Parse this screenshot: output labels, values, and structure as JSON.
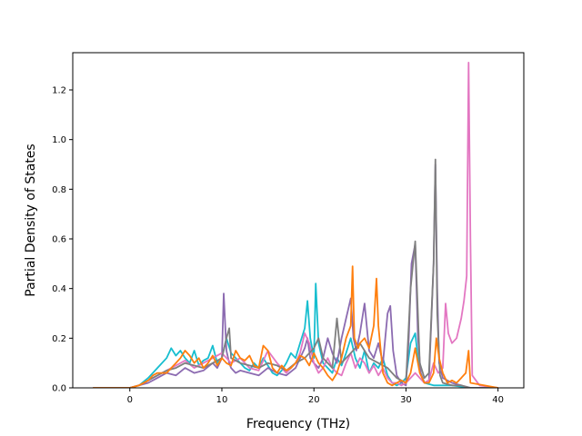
{
  "chart_data": {
    "type": "line",
    "title": "",
    "xlabel": "Frequency (THz)",
    "ylabel": "Partial Density of States",
    "xlim": [
      -6.2,
      42.8
    ],
    "ylim": [
      0,
      1.35
    ],
    "xticks": [
      0,
      10,
      20,
      30,
      40
    ],
    "yticks": [
      0.0,
      0.2,
      0.4,
      0.6,
      0.8,
      1.0,
      1.2
    ],
    "xtick_labels": [
      "0",
      "10",
      "20",
      "30",
      "40"
    ],
    "ytick_labels": [
      "0.0",
      "0.2",
      "0.4",
      "0.6",
      "0.8",
      "1.0",
      "1.2"
    ],
    "grid": false,
    "legend": "none",
    "series": [
      {
        "color": "#17becf",
        "x": [
          -4,
          0,
          1,
          2,
          3,
          4,
          4.5,
          5,
          5.5,
          6,
          6.5,
          7,
          7.5,
          8,
          8.5,
          9,
          9.5,
          10,
          10.5,
          11,
          11.5,
          12,
          12.5,
          13,
          13.5,
          14,
          14.5,
          15,
          15.5,
          16,
          16.5,
          17,
          17.5,
          18,
          18.5,
          19,
          19.3,
          19.6,
          20,
          20.2,
          20.5,
          21,
          21.5,
          22,
          22.5,
          23,
          23.5,
          24,
          24.5,
          25,
          25.5,
          26,
          26.5,
          27,
          27.5,
          28,
          28.5,
          29,
          29.5,
          30,
          30.5,
          31,
          31.3,
          31.6,
          32,
          33,
          34,
          35,
          36,
          37,
          40
        ],
        "y": [
          0,
          0,
          0.01,
          0.04,
          0.08,
          0.12,
          0.16,
          0.13,
          0.15,
          0.12,
          0.1,
          0.15,
          0.09,
          0.11,
          0.12,
          0.17,
          0.1,
          0.12,
          0.2,
          0.14,
          0.12,
          0.1,
          0.08,
          0.07,
          0.1,
          0.08,
          0.12,
          0.09,
          0.06,
          0.05,
          0.07,
          0.1,
          0.14,
          0.12,
          0.18,
          0.24,
          0.35,
          0.2,
          0.12,
          0.42,
          0.18,
          0.1,
          0.08,
          0.06,
          0.12,
          0.09,
          0.14,
          0.2,
          0.12,
          0.08,
          0.15,
          0.06,
          0.1,
          0.08,
          0.12,
          0.05,
          0.02,
          0.01,
          0.02,
          0.04,
          0.18,
          0.22,
          0.12,
          0.06,
          0.02,
          0.01,
          0.01,
          0.01,
          0.005,
          0,
          0
        ]
      },
      {
        "color": "#8c6bb1",
        "x": [
          -4,
          0,
          1,
          2,
          3,
          4,
          5,
          6,
          7,
          8,
          9,
          9.5,
          10,
          10.2,
          10.5,
          10.8,
          11,
          11.5,
          12,
          13,
          14,
          15,
          16,
          17,
          18,
          18.5,
          19,
          19.3,
          19.6,
          20,
          20.5,
          21,
          21.5,
          22,
          22.5,
          23,
          23.5,
          24,
          24.3,
          24.6,
          25,
          25.5,
          26,
          26.5,
          27,
          27.5,
          28,
          28.3,
          28.6,
          29,
          29.5,
          30,
          30.3,
          30.6,
          31,
          31.3,
          31.6,
          32,
          32.5,
          33,
          33.2,
          33.4,
          33.6,
          34,
          35,
          36,
          37,
          40
        ],
        "y": [
          0,
          0,
          0.01,
          0.02,
          0.04,
          0.06,
          0.05,
          0.08,
          0.06,
          0.07,
          0.1,
          0.08,
          0.12,
          0.38,
          0.15,
          0.1,
          0.08,
          0.06,
          0.07,
          0.06,
          0.05,
          0.08,
          0.06,
          0.05,
          0.08,
          0.12,
          0.16,
          0.2,
          0.12,
          0.1,
          0.08,
          0.12,
          0.2,
          0.14,
          0.1,
          0.2,
          0.28,
          0.36,
          0.2,
          0.15,
          0.22,
          0.34,
          0.15,
          0.12,
          0.18,
          0.1,
          0.3,
          0.33,
          0.15,
          0.05,
          0.02,
          0.01,
          0.2,
          0.5,
          0.58,
          0.2,
          0.06,
          0.02,
          0.03,
          0.5,
          0.9,
          0.4,
          0.1,
          0.04,
          0.02,
          0.01,
          0,
          0
        ]
      },
      {
        "color": "#e377c2",
        "x": [
          -4,
          0,
          1,
          2,
          3,
          4,
          5,
          6,
          7,
          8,
          9,
          10,
          11,
          12,
          13,
          14,
          15,
          16,
          17,
          18,
          18.5,
          19,
          19.5,
          20,
          20.5,
          21,
          21.5,
          22,
          22.5,
          23,
          23.5,
          24,
          24.5,
          25,
          25.5,
          26,
          26.5,
          27,
          27.5,
          28,
          28.5,
          29,
          29.5,
          30,
          30.5,
          31,
          31.5,
          32,
          32.5,
          33,
          33.5,
          34,
          34.3,
          34.6,
          35,
          35.5,
          36,
          36.3,
          36.6,
          36.8,
          37,
          37.2,
          38,
          40
        ],
        "y": [
          0,
          0,
          0.01,
          0.03,
          0.05,
          0.07,
          0.09,
          0.11,
          0.08,
          0.1,
          0.12,
          0.14,
          0.1,
          0.12,
          0.08,
          0.07,
          0.15,
          0.1,
          0.06,
          0.1,
          0.14,
          0.22,
          0.18,
          0.1,
          0.06,
          0.08,
          0.12,
          0.08,
          0.06,
          0.05,
          0.1,
          0.14,
          0.08,
          0.12,
          0.1,
          0.06,
          0.09,
          0.05,
          0.08,
          0.04,
          0.02,
          0.02,
          0.01,
          0.02,
          0.04,
          0.06,
          0.04,
          0.02,
          0.03,
          0.1,
          0.06,
          0.08,
          0.34,
          0.22,
          0.18,
          0.2,
          0.28,
          0.35,
          0.45,
          1.31,
          0.6,
          0.05,
          0.01,
          0
        ]
      },
      {
        "color": "#7f7f7f",
        "x": [
          -4,
          0,
          1,
          2,
          3,
          4,
          5,
          6,
          7,
          8,
          9,
          10,
          10.5,
          10.8,
          11,
          12,
          13,
          14,
          15,
          16,
          17,
          18,
          19,
          20,
          20.5,
          21,
          22,
          22.5,
          23,
          24,
          25,
          26,
          27,
          28,
          29,
          30,
          30.5,
          31,
          31.5,
          32,
          32.5,
          33,
          33.2,
          33.4,
          33.7,
          34,
          35,
          36,
          37,
          40
        ],
        "y": [
          0,
          0,
          0.01,
          0.03,
          0.05,
          0.07,
          0.08,
          0.1,
          0.09,
          0.08,
          0.1,
          0.12,
          0.2,
          0.24,
          0.12,
          0.1,
          0.09,
          0.08,
          0.1,
          0.09,
          0.07,
          0.1,
          0.12,
          0.16,
          0.2,
          0.12,
          0.08,
          0.28,
          0.1,
          0.14,
          0.18,
          0.12,
          0.1,
          0.08,
          0.04,
          0.02,
          0.4,
          0.59,
          0.1,
          0.04,
          0.06,
          0.5,
          0.92,
          0.3,
          0.05,
          0.02,
          0.01,
          0.01,
          0,
          0
        ]
      },
      {
        "color": "#ff7f0e",
        "x": [
          -4,
          0,
          1,
          2,
          2.5,
          3,
          4,
          4.5,
          5,
          5.5,
          6,
          6.5,
          7,
          7.5,
          8,
          8.5,
          9,
          9.5,
          10,
          10.5,
          11,
          11.5,
          12,
          12.5,
          13,
          13.5,
          14,
          14.5,
          15,
          15.5,
          16,
          16.5,
          17,
          17.5,
          18,
          18.5,
          19,
          19.5,
          20,
          20.5,
          21,
          21.5,
          22,
          22.5,
          23,
          23.5,
          24,
          24.2,
          24.4,
          24.8,
          25,
          25.5,
          26,
          26.5,
          26.8,
          27,
          27.5,
          28,
          28.5,
          29,
          29.5,
          30,
          30.5,
          31,
          31.2,
          31.5,
          32,
          32.5,
          33,
          33.3,
          33.6,
          34,
          34.5,
          35,
          35.5,
          36,
          36.5,
          36.8,
          37,
          40
        ],
        "y": [
          0,
          0,
          0.01,
          0.03,
          0.05,
          0.06,
          0.06,
          0.08,
          0.1,
          0.12,
          0.15,
          0.13,
          0.1,
          0.12,
          0.08,
          0.1,
          0.13,
          0.09,
          0.12,
          0.1,
          0.09,
          0.15,
          0.12,
          0.11,
          0.13,
          0.09,
          0.08,
          0.17,
          0.15,
          0.08,
          0.06,
          0.09,
          0.07,
          0.08,
          0.1,
          0.13,
          0.12,
          0.09,
          0.14,
          0.1,
          0.08,
          0.05,
          0.03,
          0.06,
          0.12,
          0.2,
          0.25,
          0.49,
          0.2,
          0.16,
          0.18,
          0.2,
          0.16,
          0.25,
          0.44,
          0.25,
          0.06,
          0.02,
          0.01,
          0.02,
          0.03,
          0.02,
          0.06,
          0.16,
          0.12,
          0.06,
          0.02,
          0.02,
          0.06,
          0.2,
          0.12,
          0.06,
          0.02,
          0.03,
          0.02,
          0.04,
          0.06,
          0.15,
          0.02,
          0
        ]
      }
    ]
  }
}
